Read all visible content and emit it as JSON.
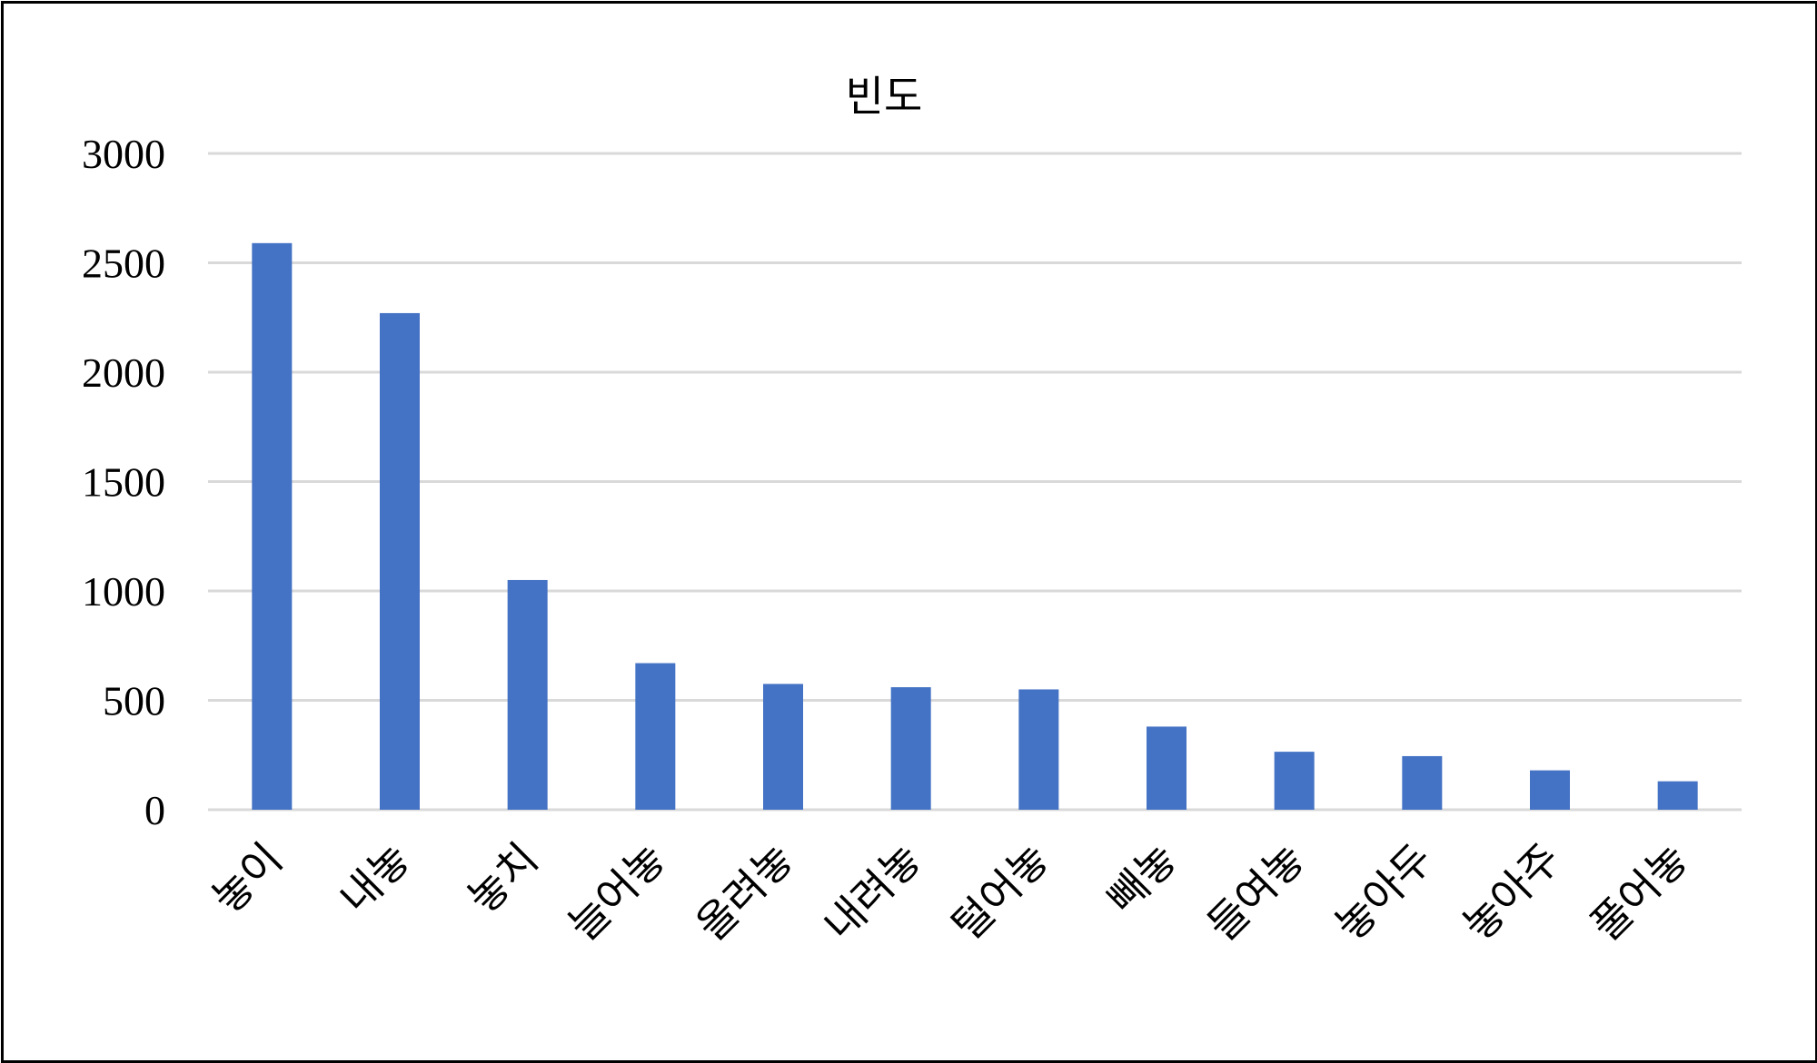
{
  "chart_data": {
    "type": "bar",
    "title": "빈도",
    "xlabel": "",
    "ylabel": "",
    "categories": [
      "놓이",
      "내놓",
      "놓치",
      "늘어놓",
      "올려놓",
      "내려놓",
      "털어놓",
      "빼놓",
      "들여놓",
      "놓아두",
      "놓아주",
      "풀어놓"
    ],
    "values": [
      2590,
      2270,
      1050,
      670,
      575,
      560,
      550,
      380,
      265,
      245,
      180,
      130
    ],
    "ylim": [
      0,
      3000
    ],
    "yticks": [
      "0",
      "500",
      "1000",
      "1500",
      "2000",
      "2500",
      "3000"
    ],
    "grid": true,
    "legend": "none",
    "bar_color": "#4472c4",
    "grid_color": "#d9d9d9"
  }
}
